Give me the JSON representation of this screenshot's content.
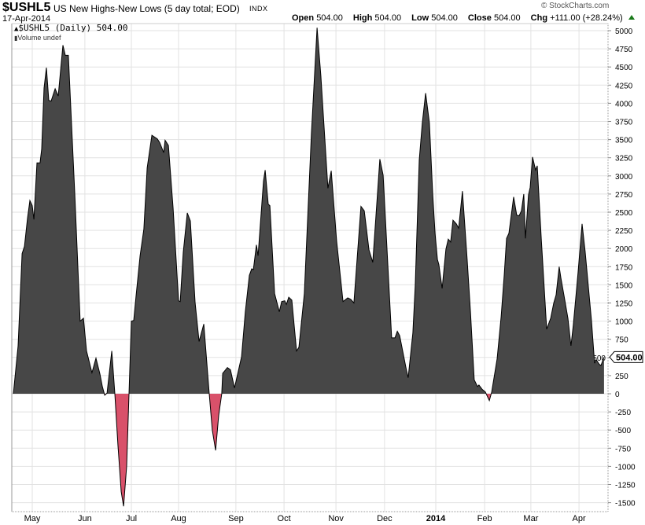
{
  "header": {
    "symbol": "$USHL5",
    "description": "US New Highs-New Lows (5 day total; EOD)",
    "exchange": "INDX",
    "date": "17-Apr-2014",
    "copyright": "© StockCharts.com",
    "open_label": "Open",
    "open": "504.00",
    "high_label": "High",
    "high": "504.00",
    "low_label": "Low",
    "low": "504.00",
    "close_label": "Close",
    "close": "504.00",
    "chg_label": "Chg",
    "chg": "+111.00 (+28.24%)"
  },
  "legend": {
    "series": "$USHL5 (Daily) 504.00",
    "volume": "Volume undef"
  },
  "colors": {
    "positive": "#474747",
    "negative": "#d9516a",
    "grid": "#e2e2e2",
    "up": "#1a7a1a"
  },
  "chart_data": {
    "type": "area",
    "title": "$USHL5 US New Highs-New Lows (5 day total; EOD)",
    "xlabel": "",
    "ylabel": "",
    "ylim": [
      -1500,
      5000
    ],
    "xlim": [
      -1,
      252
    ],
    "x_unit": "trading day index (from late Apr 2013)",
    "yticks": [
      -1500,
      -1250,
      -1000,
      -750,
      -500,
      -250,
      0,
      250,
      500,
      750,
      1000,
      1250,
      1500,
      1750,
      2000,
      2250,
      2500,
      2750,
      3000,
      3250,
      3500,
      3750,
      4000,
      4250,
      4500,
      4750,
      5000
    ],
    "xticks": [
      {
        "label": "May",
        "x": 8
      },
      {
        "label": "Jun",
        "x": 30.3
      },
      {
        "label": "Jul",
        "x": 50
      },
      {
        "label": "Aug",
        "x": 70
      },
      {
        "label": "Sep",
        "x": 94.3
      },
      {
        "label": "Oct",
        "x": 114.7
      },
      {
        "label": "Nov",
        "x": 136.7
      },
      {
        "label": "Dec",
        "x": 157.3
      },
      {
        "label": "2014",
        "x": 179,
        "bold": true
      },
      {
        "label": "Feb",
        "x": 199.7
      },
      {
        "label": "Mar",
        "x": 219.3
      },
      {
        "label": "Apr",
        "x": 239.7
      }
    ],
    "last_value_label": "504.00",
    "grid": true,
    "points": [
      [
        0,
        0
      ],
      [
        2,
        660
      ],
      [
        3.7,
        1930
      ],
      [
        4.7,
        2030
      ],
      [
        6,
        2420
      ],
      [
        7,
        2660
      ],
      [
        8,
        2590
      ],
      [
        8.7,
        2400
      ],
      [
        10,
        3180
      ],
      [
        11.3,
        3180
      ],
      [
        12,
        3370
      ],
      [
        13,
        4210
      ],
      [
        14,
        4490
      ],
      [
        15,
        4040
      ],
      [
        16,
        4030
      ],
      [
        17.7,
        4200
      ],
      [
        19,
        4100
      ],
      [
        21,
        4800
      ],
      [
        22,
        4660
      ],
      [
        23.3,
        4660
      ],
      [
        26,
        2770
      ],
      [
        28.3,
        1000
      ],
      [
        29.7,
        1040
      ],
      [
        31,
        590
      ],
      [
        33.3,
        290
      ],
      [
        35,
        490
      ],
      [
        36.7,
        270
      ],
      [
        37.7,
        100
      ],
      [
        38.7,
        -20
      ],
      [
        39.7,
        10
      ],
      [
        41.7,
        590
      ],
      [
        43,
        0
      ],
      [
        44.3,
        -700
      ],
      [
        45.7,
        -1350
      ],
      [
        46.7,
        -1550
      ],
      [
        48,
        -1000
      ],
      [
        49,
        0
      ],
      [
        50,
        1000
      ],
      [
        51,
        1010
      ],
      [
        52,
        1350
      ],
      [
        53.7,
        1900
      ],
      [
        55.3,
        2270
      ],
      [
        56.7,
        3110
      ],
      [
        58.7,
        3560
      ],
      [
        61,
        3510
      ],
      [
        62,
        3460
      ],
      [
        63.7,
        3320
      ],
      [
        64.3,
        3490
      ],
      [
        65.7,
        3420
      ],
      [
        67.7,
        2550
      ],
      [
        70,
        1280
      ],
      [
        70.7,
        1270
      ],
      [
        72,
        1950
      ],
      [
        73.7,
        2490
      ],
      [
        75,
        2380
      ],
      [
        77,
        1260
      ],
      [
        78.7,
        720
      ],
      [
        80.7,
        960
      ],
      [
        83,
        0
      ],
      [
        84.3,
        -500
      ],
      [
        85.7,
        -780
      ],
      [
        87,
        -300
      ],
      [
        88.3,
        0
      ],
      [
        88.7,
        280
      ],
      [
        90.7,
        360
      ],
      [
        92,
        330
      ],
      [
        93.7,
        80
      ],
      [
        96.7,
        510
      ],
      [
        98.3,
        1130
      ],
      [
        100,
        1630
      ],
      [
        101,
        1720
      ],
      [
        101.7,
        1710
      ],
      [
        103,
        2050
      ],
      [
        103.7,
        1900
      ],
      [
        106,
        2930
      ],
      [
        106.7,
        3080
      ],
      [
        108,
        2610
      ],
      [
        108.7,
        2590
      ],
      [
        110.7,
        1380
      ],
      [
        112.7,
        1130
      ],
      [
        113.7,
        1270
      ],
      [
        115,
        1280
      ],
      [
        115.7,
        1230
      ],
      [
        116.7,
        1330
      ],
      [
        118,
        1290
      ],
      [
        120,
        590
      ],
      [
        121,
        640
      ],
      [
        123.3,
        1380
      ],
      [
        126.3,
        3580
      ],
      [
        128.7,
        5040
      ],
      [
        130.3,
        4380
      ],
      [
        133.3,
        2830
      ],
      [
        134.7,
        3070
      ],
      [
        137,
        2100
      ],
      [
        139.7,
        1270
      ],
      [
        141.7,
        1320
      ],
      [
        143,
        1300
      ],
      [
        144.3,
        1250
      ],
      [
        147.3,
        2580
      ],
      [
        148.7,
        2520
      ],
      [
        150.7,
        1980
      ],
      [
        152.3,
        1810
      ],
      [
        155.3,
        3230
      ],
      [
        156.7,
        3010
      ],
      [
        160.3,
        770
      ],
      [
        161.7,
        770
      ],
      [
        162.7,
        860
      ],
      [
        163.7,
        800
      ],
      [
        166.3,
        370
      ],
      [
        167.3,
        220
      ],
      [
        169.3,
        840
      ],
      [
        170.3,
        1490
      ],
      [
        172,
        3220
      ],
      [
        173.3,
        3730
      ],
      [
        174.7,
        4140
      ],
      [
        176.3,
        3730
      ],
      [
        177.7,
        2750
      ],
      [
        178.7,
        2210
      ],
      [
        179.7,
        1850
      ],
      [
        180.3,
        1780
      ],
      [
        181.7,
        1450
      ],
      [
        183.3,
        1990
      ],
      [
        184.3,
        2130
      ],
      [
        185.3,
        2090
      ],
      [
        186.3,
        2390
      ],
      [
        187.7,
        2340
      ],
      [
        188.7,
        2280
      ],
      [
        190.3,
        2790
      ],
      [
        192.3,
        1850
      ],
      [
        193.7,
        1130
      ],
      [
        195.3,
        190
      ],
      [
        196.7,
        100
      ],
      [
        197.3,
        120
      ],
      [
        198.7,
        60
      ],
      [
        200,
        25
      ],
      [
        201.7,
        -94
      ],
      [
        202.7,
        25
      ],
      [
        205,
        480
      ],
      [
        206.7,
        1060
      ],
      [
        208,
        1630
      ],
      [
        209,
        2140
      ],
      [
        210,
        2210
      ],
      [
        212,
        2710
      ],
      [
        213.3,
        2460
      ],
      [
        214.3,
        2450
      ],
      [
        215.3,
        2520
      ],
      [
        216.3,
        2750
      ],
      [
        217,
        2140
      ],
      [
        218.3,
        2740
      ],
      [
        219,
        2840
      ],
      [
        220,
        3260
      ],
      [
        221.3,
        3080
      ],
      [
        222,
        3140
      ],
      [
        223.7,
        2140
      ],
      [
        226,
        890
      ],
      [
        227.7,
        1040
      ],
      [
        229,
        1250
      ],
      [
        230,
        1360
      ],
      [
        231.3,
        1750
      ],
      [
        232,
        1600
      ],
      [
        233.3,
        1360
      ],
      [
        235,
        1040
      ],
      [
        236.3,
        660
      ],
      [
        237.3,
        950
      ],
      [
        239.3,
        1670
      ],
      [
        241,
        2340
      ],
      [
        242.3,
        1960
      ],
      [
        245,
        1000
      ],
      [
        246.3,
        420
      ],
      [
        247,
        470
      ],
      [
        248.3,
        405
      ],
      [
        249,
        390
      ],
      [
        250.3,
        504
      ]
    ]
  }
}
